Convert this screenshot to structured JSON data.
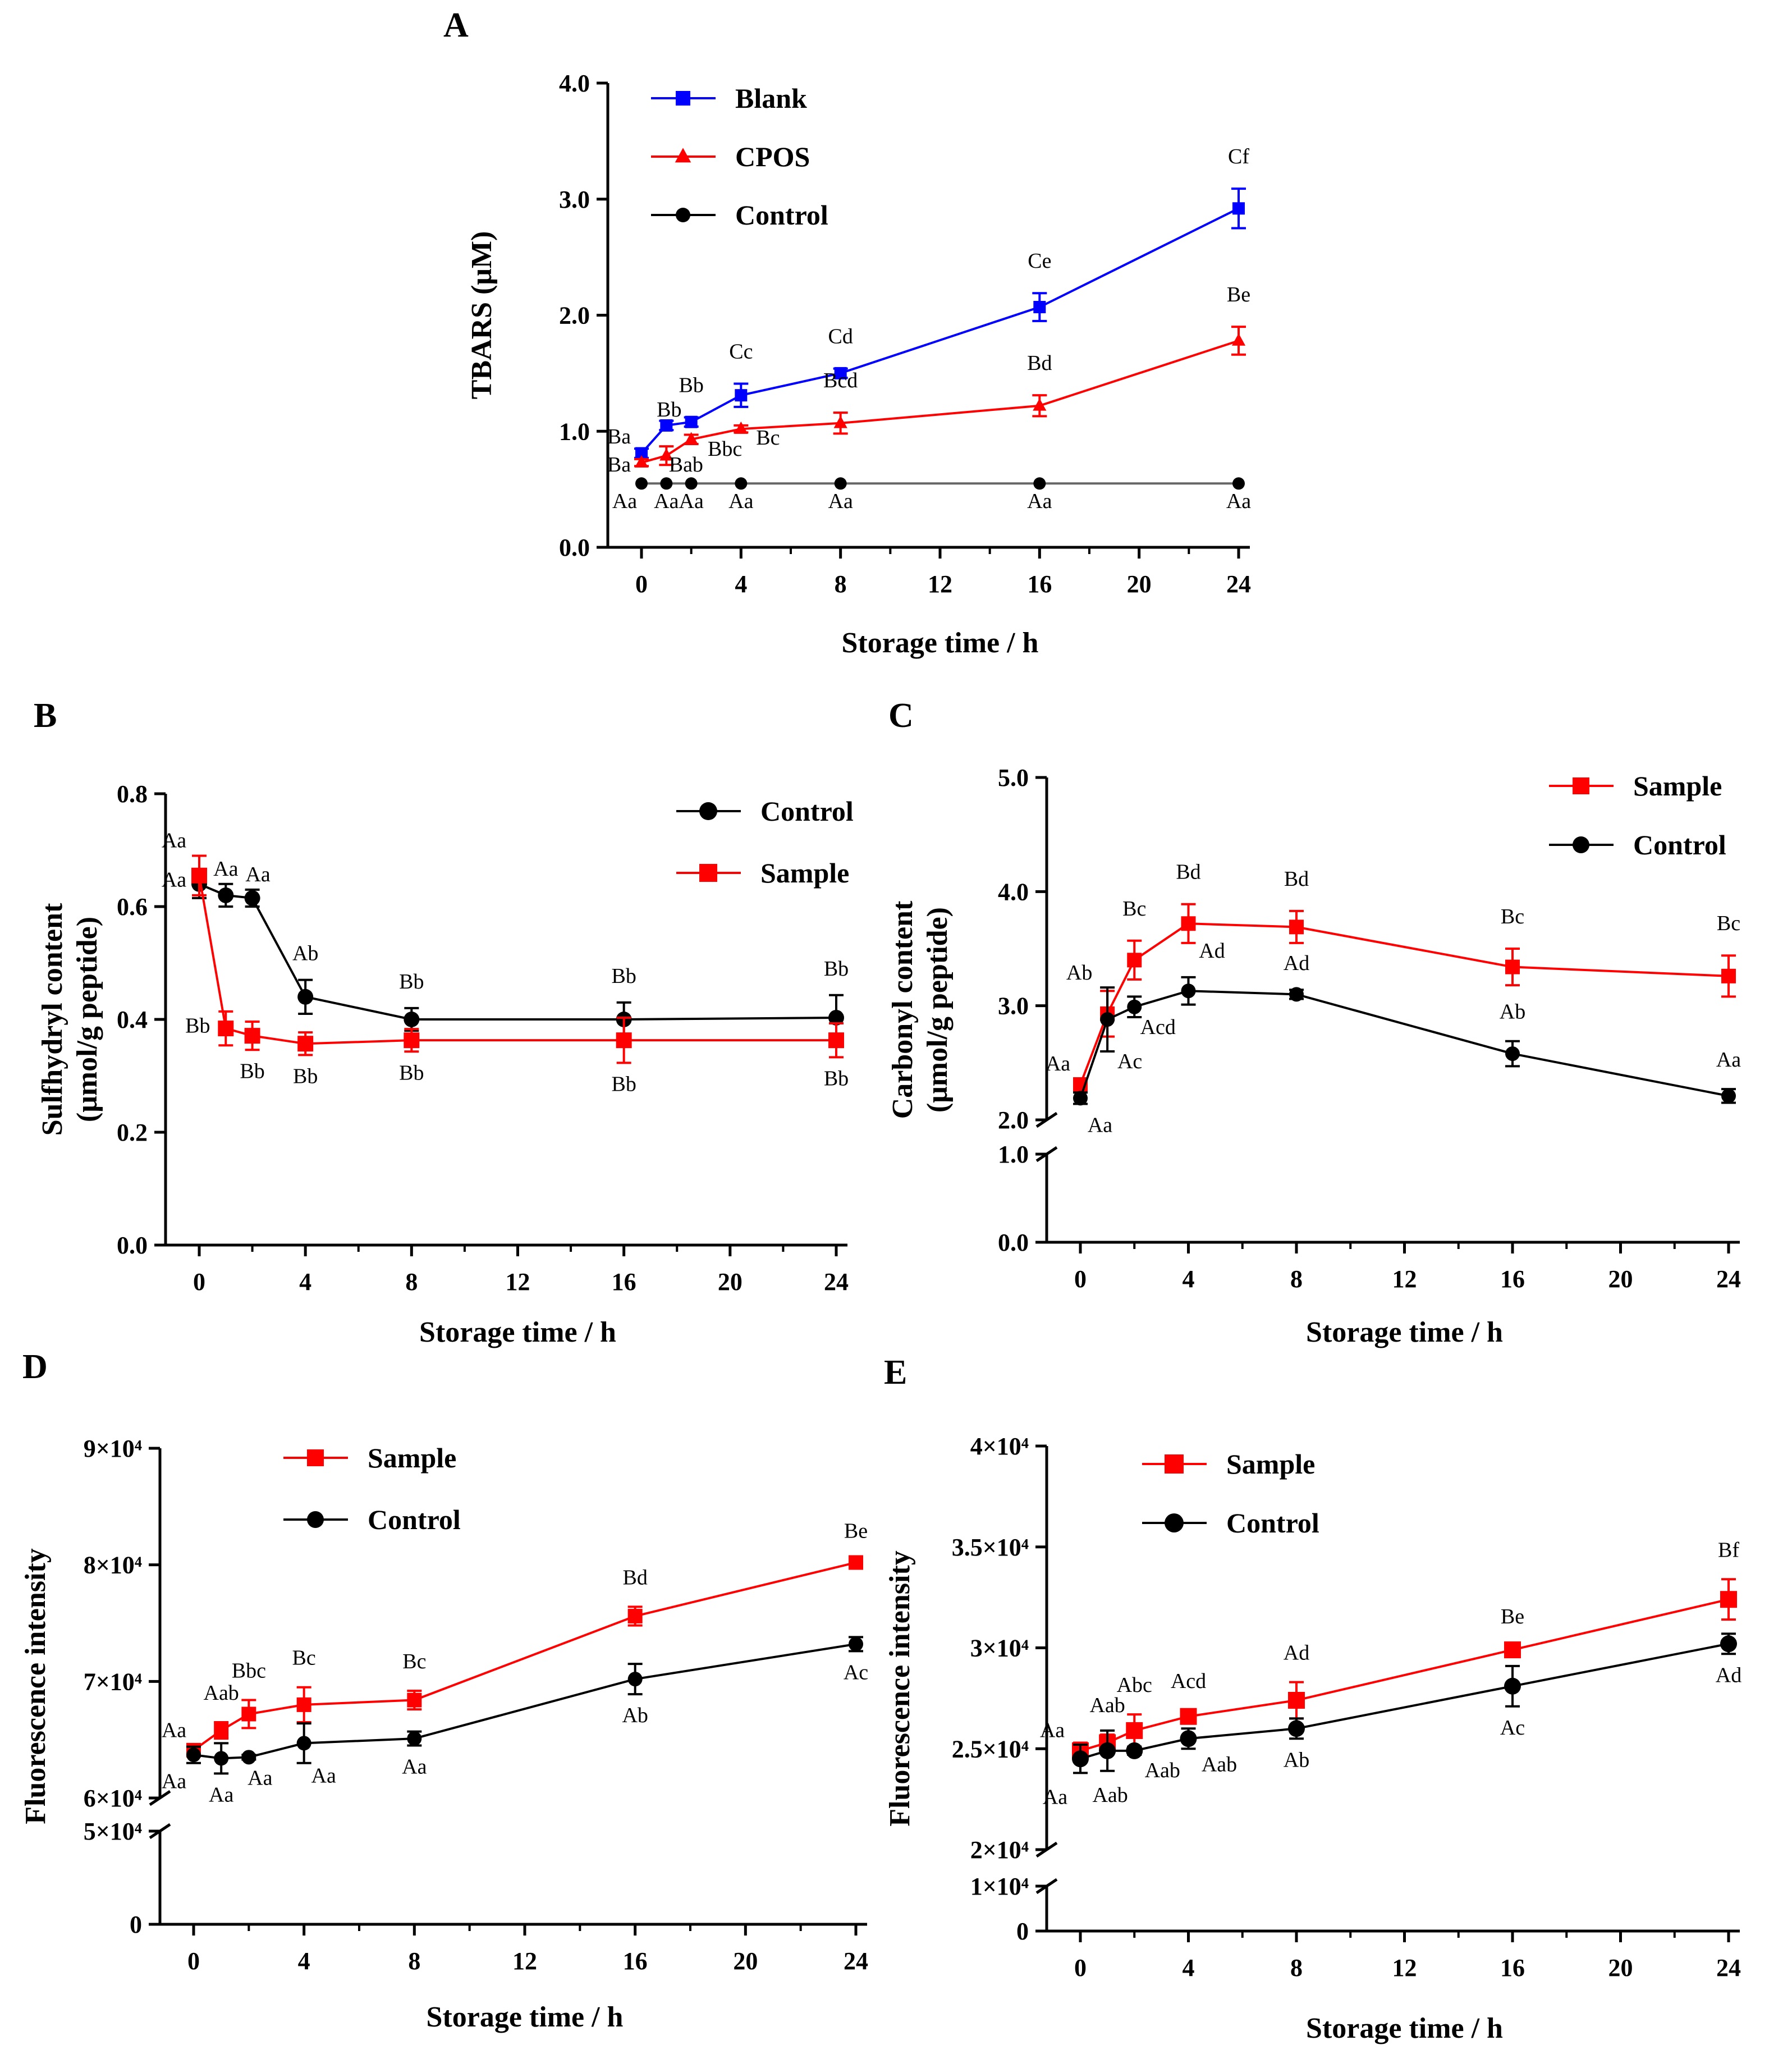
{
  "chart_data": [
    {
      "panel": "A",
      "type": "line",
      "xlabel": "Storage time / h",
      "ylabel": "TBARS (μM)",
      "xticks": [
        "0",
        "4",
        "8",
        "12",
        "16",
        "20",
        "24"
      ],
      "yticks": [
        "0.0",
        "1.0",
        "2.0",
        "3.0",
        "4.0"
      ],
      "xlim": [
        0,
        24
      ],
      "ylim": [
        0,
        4
      ],
      "legend": "top-left",
      "series": [
        {
          "name": "Blank",
          "color": "#0000ff",
          "marker": "square",
          "x": [
            0,
            1,
            2,
            4,
            8,
            16,
            24
          ],
          "y": [
            0.81,
            1.05,
            1.08,
            1.31,
            1.5,
            2.07,
            2.92
          ],
          "err": [
            0.04,
            0.04,
            0.04,
            0.1,
            0.04,
            0.12,
            0.17
          ],
          "labels": [
            "Ba",
            "Bb",
            "Bb",
            "Cc",
            "Cd",
            "Ce",
            "Cf"
          ]
        },
        {
          "name": "CPOS",
          "color": "#ff0000",
          "marker": "triangle",
          "x": [
            0,
            1,
            2,
            4,
            8,
            16,
            24
          ],
          "y": [
            0.73,
            0.79,
            0.93,
            1.02,
            1.07,
            1.22,
            1.78
          ],
          "err": [
            0.03,
            0.08,
            0.04,
            0.03,
            0.09,
            0.09,
            0.12
          ],
          "labels": [
            "Ba",
            "Bab",
            "Bbc",
            "Bc",
            "Bcd",
            "Bd",
            "Be"
          ]
        },
        {
          "name": "Control",
          "color": "#000000",
          "marker": "circle",
          "x": [
            0,
            1,
            2,
            4,
            8,
            16,
            24
          ],
          "y": [
            0.55,
            0.55,
            0.55,
            0.55,
            0.55,
            0.55,
            0.55
          ],
          "err": [
            0,
            0,
            0,
            0,
            0,
            0,
            0
          ],
          "labels": [
            "Aa",
            "Aa",
            "Aa",
            "Aa",
            "Aa",
            "Aa",
            "Aa"
          ]
        }
      ]
    },
    {
      "panel": "B",
      "type": "line",
      "xlabel": "Storage time / h",
      "ylabel": [
        "Sulfhydryl content",
        "(μmol/g peptide)"
      ],
      "xticks": [
        "0",
        "4",
        "8",
        "12",
        "16",
        "20",
        "24"
      ],
      "yticks": [
        "0.0",
        "0.2",
        "0.4",
        "0.6",
        "0.8"
      ],
      "xlim": [
        0,
        24
      ],
      "ylim": [
        0,
        0.8
      ],
      "legend": "top-right",
      "series": [
        {
          "name": "Control",
          "color": "#000000",
          "marker": "circle",
          "x": [
            0,
            1,
            2,
            4,
            8,
            16,
            24
          ],
          "y": [
            0.64,
            0.62,
            0.615,
            0.44,
            0.4,
            0.4,
            0.403
          ],
          "err": [
            0.025,
            0.02,
            0.015,
            0.03,
            0.02,
            0.03,
            0.04
          ],
          "labels": [
            "Aa",
            "Aa",
            "Aa",
            "Ab",
            "Bb",
            "Bb",
            "Bb"
          ]
        },
        {
          "name": "Sample",
          "color": "#ff0000",
          "marker": "square",
          "x": [
            0,
            1,
            2,
            4,
            8,
            16,
            24
          ],
          "y": [
            0.655,
            0.384,
            0.371,
            0.357,
            0.363,
            0.363,
            0.363
          ],
          "err": [
            0.035,
            0.03,
            0.025,
            0.02,
            0.02,
            0.04,
            0.03
          ],
          "labels": [
            "Aa",
            "Bb",
            "Bb",
            "Bb",
            "Bb",
            "Bb",
            "Bb"
          ]
        }
      ]
    },
    {
      "panel": "C",
      "type": "line",
      "xlabel": "Storage  time / h",
      "ylabel": [
        "Carbonyl content",
        "(μmol/g peptide)"
      ],
      "xticks": [
        "0",
        "4",
        "8",
        "12",
        "16",
        "20",
        "24"
      ],
      "yticks": [
        "0.0",
        "1.0",
        "2.0",
        "3.0",
        "4.0",
        "5.0"
      ],
      "xlim": [
        0,
        24
      ],
      "ylim": [
        0,
        5
      ],
      "axis_break": [
        1,
        2
      ],
      "legend": "top-right",
      "series": [
        {
          "name": "Sample",
          "color": "#ff0000",
          "marker": "square",
          "x": [
            0,
            1,
            2,
            4,
            8,
            16,
            24
          ],
          "y": [
            2.31,
            2.93,
            3.4,
            3.72,
            3.69,
            3.34,
            3.26
          ],
          "err": [
            0.05,
            0.2,
            0.17,
            0.17,
            0.14,
            0.16,
            0.18
          ],
          "labels": [
            "Aa",
            "Ab",
            "Bc",
            "Bd",
            "Bd",
            "Bc",
            "Bc"
          ]
        },
        {
          "name": "Control",
          "color": "#000000",
          "marker": "circle",
          "x": [
            0,
            1,
            2,
            4,
            8,
            16,
            24
          ],
          "y": [
            2.19,
            2.88,
            2.99,
            3.13,
            3.1,
            2.58,
            2.21
          ],
          "err": [
            0.05,
            0.28,
            0.09,
            0.12,
            0.04,
            0.11,
            0.06
          ],
          "labels": [
            "Aa",
            "Ac",
            "Acd",
            "Ad",
            "Ad",
            "Ab",
            "Aa"
          ]
        }
      ]
    },
    {
      "panel": "D",
      "type": "line",
      "xlabel": "Storage time / h",
      "ylabel": "Fluorescence intensity",
      "xticks": [
        "0",
        "4",
        "8",
        "12",
        "16",
        "20",
        "24"
      ],
      "yticks": [
        "0",
        "5×10⁴",
        "6×10⁴",
        "7×10⁴",
        "8×10⁴",
        "9×10⁴"
      ],
      "xlim": [
        0,
        24
      ],
      "ylim": [
        0,
        90000
      ],
      "axis_break": [
        50000,
        60000
      ],
      "legend": "top-left",
      "series": [
        {
          "name": "Sample",
          "color": "#ff0000",
          "marker": "square",
          "x": [
            0,
            1,
            2,
            4,
            8,
            16,
            24
          ],
          "y": [
            64100,
            65800,
            67200,
            68000,
            68400,
            75600,
            80200
          ],
          "err": [
            400,
            700,
            1200,
            1500,
            800,
            800,
            200
          ],
          "labels": [
            "Aa",
            "Aab",
            "Bbc",
            "Bc",
            "Bc",
            "Bd",
            "Be"
          ]
        },
        {
          "name": "Control",
          "color": "#000000",
          "marker": "circle",
          "x": [
            0,
            1,
            2,
            4,
            8,
            16,
            24
          ],
          "y": [
            63700,
            63400,
            63500,
            64700,
            65100,
            70200,
            73200
          ],
          "err": [
            700,
            1300,
            200,
            1700,
            600,
            1300,
            600
          ],
          "labels": [
            "Aa",
            "Aa",
            "Aa",
            "Aa",
            "Aa",
            "Ab",
            "Ac"
          ]
        }
      ]
    },
    {
      "panel": "E",
      "type": "line",
      "xlabel": "Storage time / h",
      "ylabel": "Fluorescence intensity",
      "xticks": [
        "0",
        "4",
        "8",
        "12",
        "16",
        "20",
        "24"
      ],
      "yticks": [
        "0",
        "1×10⁴",
        "2×10⁴",
        "2.5×10⁴",
        "3×10⁴",
        "3.5×10⁴",
        "4×10⁴"
      ],
      "xlim": [
        0,
        24
      ],
      "ylim": [
        0,
        40000
      ],
      "axis_break": [
        10000,
        20000
      ],
      "legend": "top-left",
      "series": [
        {
          "name": "Sample",
          "color": "#ff0000",
          "marker": "square",
          "x": [
            0,
            1,
            2,
            4,
            8,
            16,
            24
          ],
          "y": [
            24900,
            25300,
            25900,
            26600,
            27400,
            29900,
            32400
          ],
          "err": [
            400,
            400,
            800,
            300,
            900,
            200,
            1000
          ],
          "labels": [
            "Aa",
            "Aab",
            "Abc",
            "Acd",
            "Ad",
            "Be",
            "Bf"
          ]
        },
        {
          "name": "Control",
          "color": "#000000",
          "marker": "circle",
          "x": [
            0,
            1,
            2,
            4,
            8,
            16,
            24
          ],
          "y": [
            24500,
            24900,
            24900,
            25500,
            26000,
            28100,
            30200
          ],
          "err": [
            700,
            1000,
            200,
            500,
            500,
            1000,
            500
          ],
          "labels": [
            "Aa",
            "Aab",
            "Aab",
            "Aab",
            "Ab",
            "Ac",
            "Ad"
          ]
        }
      ]
    }
  ]
}
